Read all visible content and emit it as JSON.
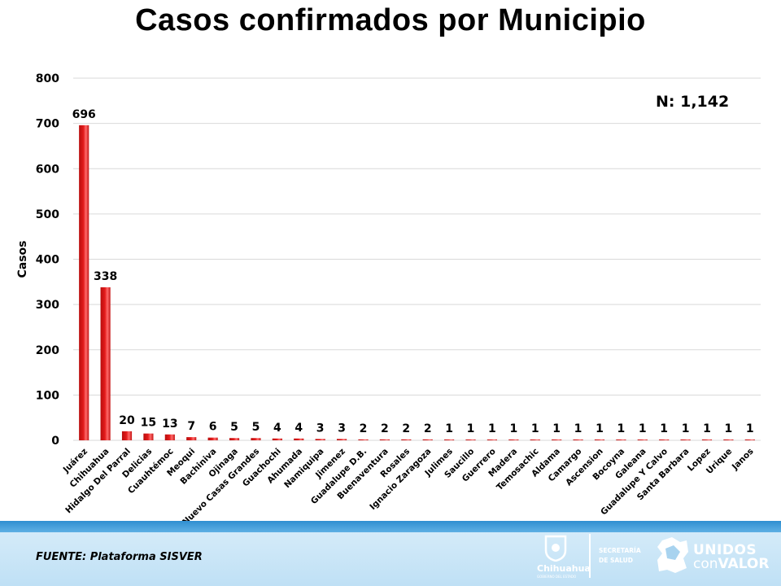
{
  "chart_data": {
    "type": "bar",
    "title": "Casos confirmados por Municipio",
    "ylabel": "Casos",
    "xlabel": "",
    "ylim": [
      0,
      800
    ],
    "yticks": [
      0,
      100,
      200,
      300,
      400,
      500,
      600,
      700,
      800
    ],
    "grid": true,
    "bar_color": "#e31b1b",
    "annotation": "N: 1,142",
    "categories": [
      "Juárez",
      "Chihuahua",
      "Hidalgo Del Parral",
      "Delicias",
      "Cuauhtémoc",
      "Meoqui",
      "Bachiniva",
      "Ojinaga",
      "Nuevo Casas Grandes",
      "Guachochi",
      "Ahumada",
      "Namiquipa",
      "Jimenez",
      "Guadalupe D.B.",
      "Buenaventura",
      "Rosales",
      "Ignacio Zaragoza",
      "Julimes",
      "Saucillo",
      "Guerrero",
      "Madera",
      "Temosachic",
      "Aldama",
      "Camargo",
      "Ascension",
      "Bocoyna",
      "Galeana",
      "Guadalupe Y Calvo",
      "Santa Barbara",
      "Lopez",
      "Urique",
      "Janos"
    ],
    "values": [
      696,
      338,
      20,
      15,
      13,
      7,
      6,
      5,
      5,
      4,
      4,
      3,
      3,
      2,
      2,
      2,
      2,
      1,
      1,
      1,
      1,
      1,
      1,
      1,
      1,
      1,
      1,
      1,
      1,
      1,
      1,
      1
    ]
  },
  "footer": {
    "source_label": "FUENTE:",
    "source_value": "Plataforma SISVER",
    "logo_chihuahua": "Chihuahua",
    "logo_chihuahua_sub": "GOBIERNO DEL ESTADO",
    "logo_secretaria": "SECRETARÍA",
    "logo_salud": "DE SALUD",
    "logo_unidos": "UNIDOS",
    "logo_con": "con",
    "logo_valor": "VALOR"
  }
}
